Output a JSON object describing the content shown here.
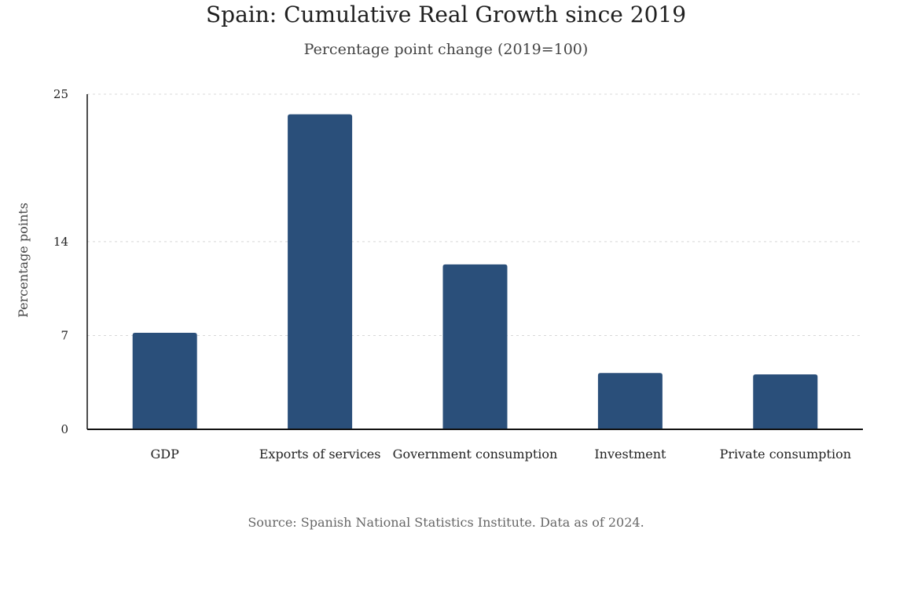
{
  "chart_data": {
    "type": "bar",
    "title": "Spain: Cumulative Real Growth since 2019",
    "subtitle": "Percentage point change (2019=100)",
    "xlabel": "",
    "ylabel": "Percentage points",
    "source": "Source: Spanish National Statistics Institute. Data as of 2024.",
    "categories": [
      "GDP",
      "Exports of services",
      "Government consumption",
      "Investment",
      "Private consumption"
    ],
    "values": [
      7.2,
      23.5,
      12.3,
      4.2,
      4.1
    ],
    "yticks": [
      0,
      7,
      14,
      25
    ],
    "ylim": [
      0,
      25
    ],
    "grid": true,
    "legend": "none",
    "colors": {
      "bar": "#2a4f7a",
      "axis": "#111111",
      "grid": "#d8d8d8"
    }
  }
}
